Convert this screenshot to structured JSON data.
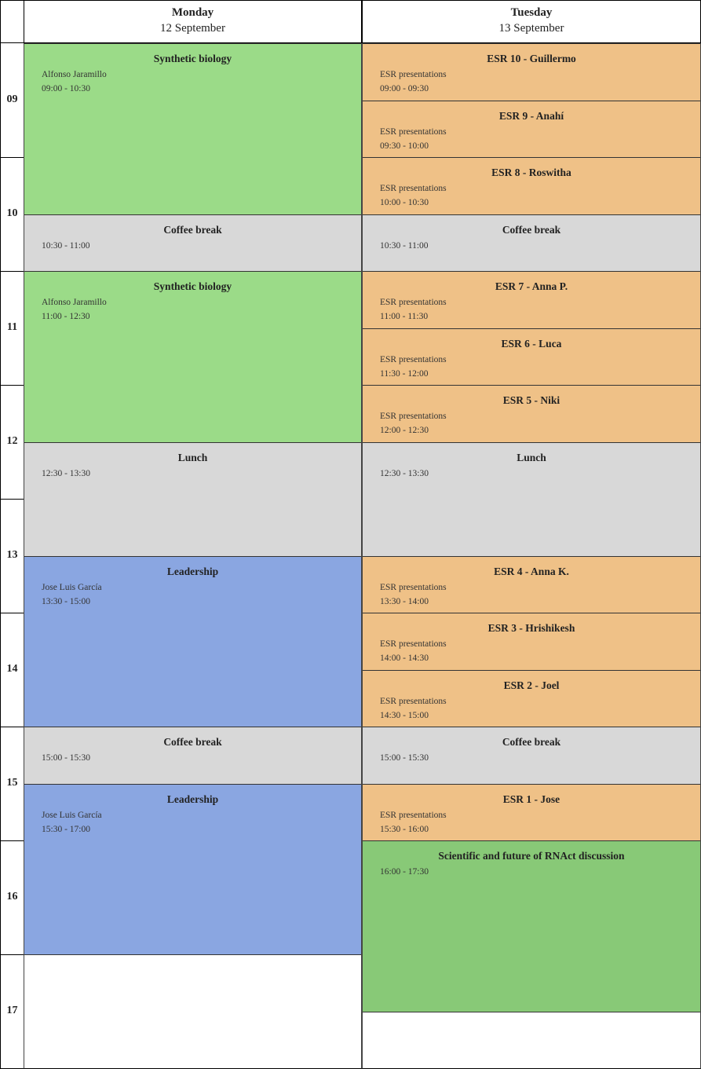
{
  "hours": [
    "09",
    "10",
    "11",
    "12",
    "13",
    "14",
    "15",
    "16",
    "17"
  ],
  "colors": {
    "synbio": "#9bdb88",
    "esr": "#efc187",
    "break": "#d8d8d8",
    "leadership": "#8aa6e1",
    "discussion": "#88c977"
  },
  "days": [
    {
      "name": "Monday",
      "date": "12 September",
      "events": [
        {
          "title": "Synthetic biology",
          "subtitle": "Alfonso Jaramillo",
          "time": "09:00 - 10:30",
          "color": "synbio"
        },
        {
          "title": "Coffee break",
          "subtitle": "",
          "time": "10:30 - 11:00",
          "color": "break"
        },
        {
          "title": "Synthetic biology",
          "subtitle": "Alfonso Jaramillo",
          "time": "11:00 - 12:30",
          "color": "synbio"
        },
        {
          "title": "Lunch",
          "subtitle": "",
          "time": "12:30 - 13:30",
          "color": "break"
        },
        {
          "title": "Leadership",
          "subtitle": "Jose Luis García",
          "time": "13:30 - 15:00",
          "color": "leadership"
        },
        {
          "title": "Coffee break",
          "subtitle": "",
          "time": "15:00 - 15:30",
          "color": "break"
        },
        {
          "title": "Leadership",
          "subtitle": "Jose Luis García",
          "time": "15:30 - 17:00",
          "color": "leadership"
        }
      ]
    },
    {
      "name": "Tuesday",
      "date": "13 September",
      "events": [
        {
          "title": "ESR 10 - Guillermo",
          "subtitle": "ESR presentations",
          "time": "09:00 - 09:30",
          "color": "esr"
        },
        {
          "title": "ESR 9 - Anahí",
          "subtitle": "ESR presentations",
          "time": "09:30 - 10:00",
          "color": "esr"
        },
        {
          "title": "ESR 8 - Roswitha",
          "subtitle": "ESR presentations",
          "time": "10:00 - 10:30",
          "color": "esr"
        },
        {
          "title": "Coffee break",
          "subtitle": "",
          "time": "10:30 - 11:00",
          "color": "break"
        },
        {
          "title": "ESR 7 - Anna P.",
          "subtitle": "ESR presentations",
          "time": "11:00 - 11:30",
          "color": "esr"
        },
        {
          "title": "ESR 6 - Luca",
          "subtitle": "ESR presentations",
          "time": "11:30 - 12:00",
          "color": "esr"
        },
        {
          "title": "ESR 5 - Niki",
          "subtitle": "ESR presentations",
          "time": "12:00 - 12:30",
          "color": "esr"
        },
        {
          "title": "Lunch",
          "subtitle": "",
          "time": "12:30 - 13:30",
          "color": "break"
        },
        {
          "title": "ESR 4 - Anna K.",
          "subtitle": "ESR presentations",
          "time": "13:30 - 14:00",
          "color": "esr"
        },
        {
          "title": "ESR 3 - Hrishikesh",
          "subtitle": "ESR presentations",
          "time": "14:00 - 14:30",
          "color": "esr"
        },
        {
          "title": "ESR 2 - Joel",
          "subtitle": "ESR presentations",
          "time": "14:30 - 15:00",
          "color": "esr"
        },
        {
          "title": "Coffee break",
          "subtitle": "",
          "time": "15:00 - 15:30",
          "color": "break"
        },
        {
          "title": "ESR 1 - Jose",
          "subtitle": "ESR presentations",
          "time": "15:30 - 16:00",
          "color": "esr"
        },
        {
          "title": "Scientific and future of RNAct discussion",
          "subtitle": "",
          "time": "16:00 - 17:30",
          "color": "discussion"
        }
      ]
    }
  ]
}
